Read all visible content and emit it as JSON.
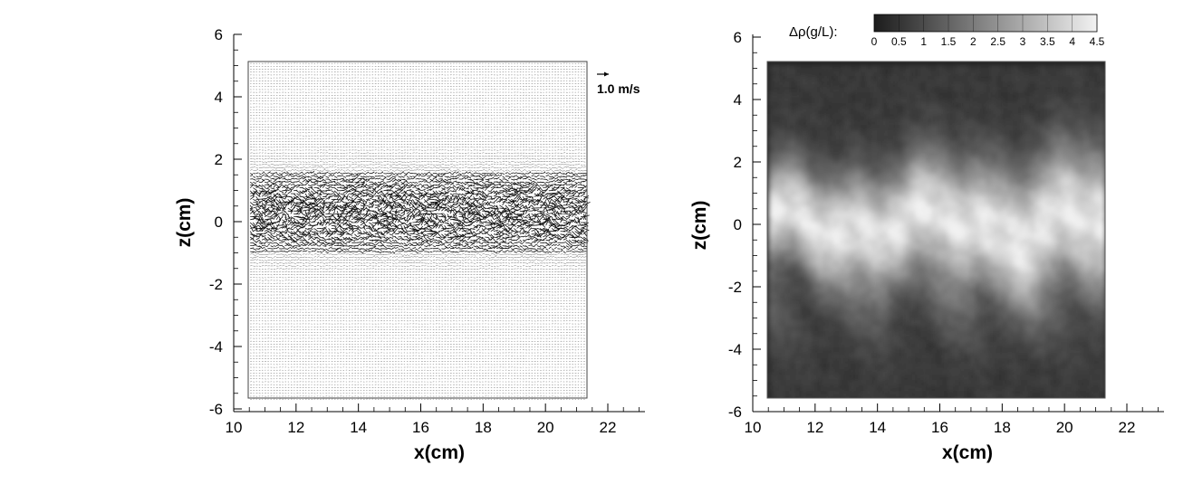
{
  "chart_data": [
    {
      "type": "vector_field",
      "xlabel": "x(cm)",
      "ylabel": "z(cm)",
      "xlim": [
        10,
        23
      ],
      "ylim": [
        -6,
        6
      ],
      "x_ticks": [
        10,
        12,
        14,
        16,
        18,
        20,
        22
      ],
      "y_ticks": [
        -6,
        -4,
        -2,
        0,
        2,
        4,
        6
      ],
      "x_tick_labels": [
        "10",
        "12",
        "14",
        "16",
        "18",
        "20",
        "22"
      ],
      "y_tick_labels": [
        "-6",
        "-4",
        "-2",
        "0",
        "2",
        "4",
        "6"
      ],
      "field_extent": {
        "x": [
          10.5,
          21.3
        ],
        "z": [
          -5.7,
          5.1
        ]
      },
      "reference_vector": {
        "label": "1.0 m/s",
        "magnitude": 1.0,
        "unit": "m/s"
      },
      "jet_centerline_z": 0.3,
      "jet_halfwidth_cm": 1.4
    },
    {
      "type": "heatmap",
      "xlabel": "x(cm)",
      "ylabel": "z(cm)",
      "xlim": [
        10,
        23
      ],
      "ylim": [
        -6,
        6
      ],
      "x_ticks": [
        10,
        12,
        14,
        16,
        18,
        20,
        22
      ],
      "y_ticks": [
        -6,
        -4,
        -2,
        0,
        2,
        4,
        6
      ],
      "x_tick_labels": [
        "10",
        "12",
        "14",
        "16",
        "18",
        "20",
        "22"
      ],
      "y_tick_labels": [
        "-6",
        "-4",
        "-2",
        "0",
        "2",
        "4",
        "6"
      ],
      "field_extent": {
        "x": [
          10.5,
          21.3
        ],
        "z": [
          -5.7,
          5.1
        ]
      },
      "colorbar": {
        "label": "Δρ(g/L):",
        "range": [
          0,
          4.5
        ],
        "ticks": [
          "0",
          "0.5",
          "1",
          "1.5",
          "2",
          "2.5",
          "3",
          "3.5",
          "4",
          "4.5"
        ],
        "colormap": "grayscale",
        "colors": [
          "#1c1c1c",
          "#f2f2f2"
        ]
      },
      "jet_centerline_z": 0.1,
      "jet_halfwidth_cm": 1.7,
      "background_value": 0.6,
      "peak_value": 4.2
    }
  ]
}
